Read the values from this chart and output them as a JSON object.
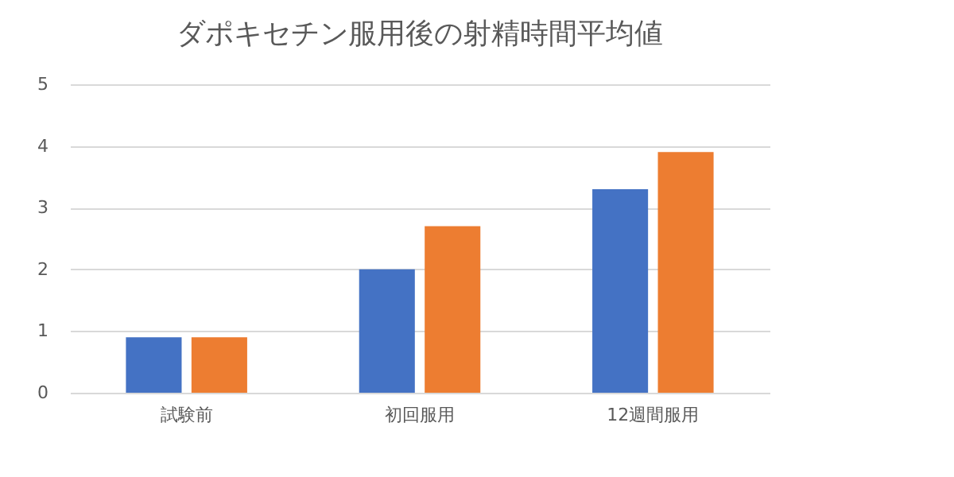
{
  "chart_data": {
    "type": "bar",
    "title": "ダポキセチン服用後の射精時間平均値",
    "categories": [
      "試験前",
      "初回服用",
      "12週間服用"
    ],
    "series": [
      {
        "color": "#4472c4",
        "values": [
          0.9,
          2.0,
          3.3
        ]
      },
      {
        "color": "#ed7d31",
        "values": [
          0.9,
          2.7,
          3.9
        ]
      }
    ],
    "ylim": [
      0,
      5
    ],
    "yticks": [
      0,
      1,
      2,
      3,
      4,
      5
    ],
    "grid": "y",
    "legend": false
  }
}
